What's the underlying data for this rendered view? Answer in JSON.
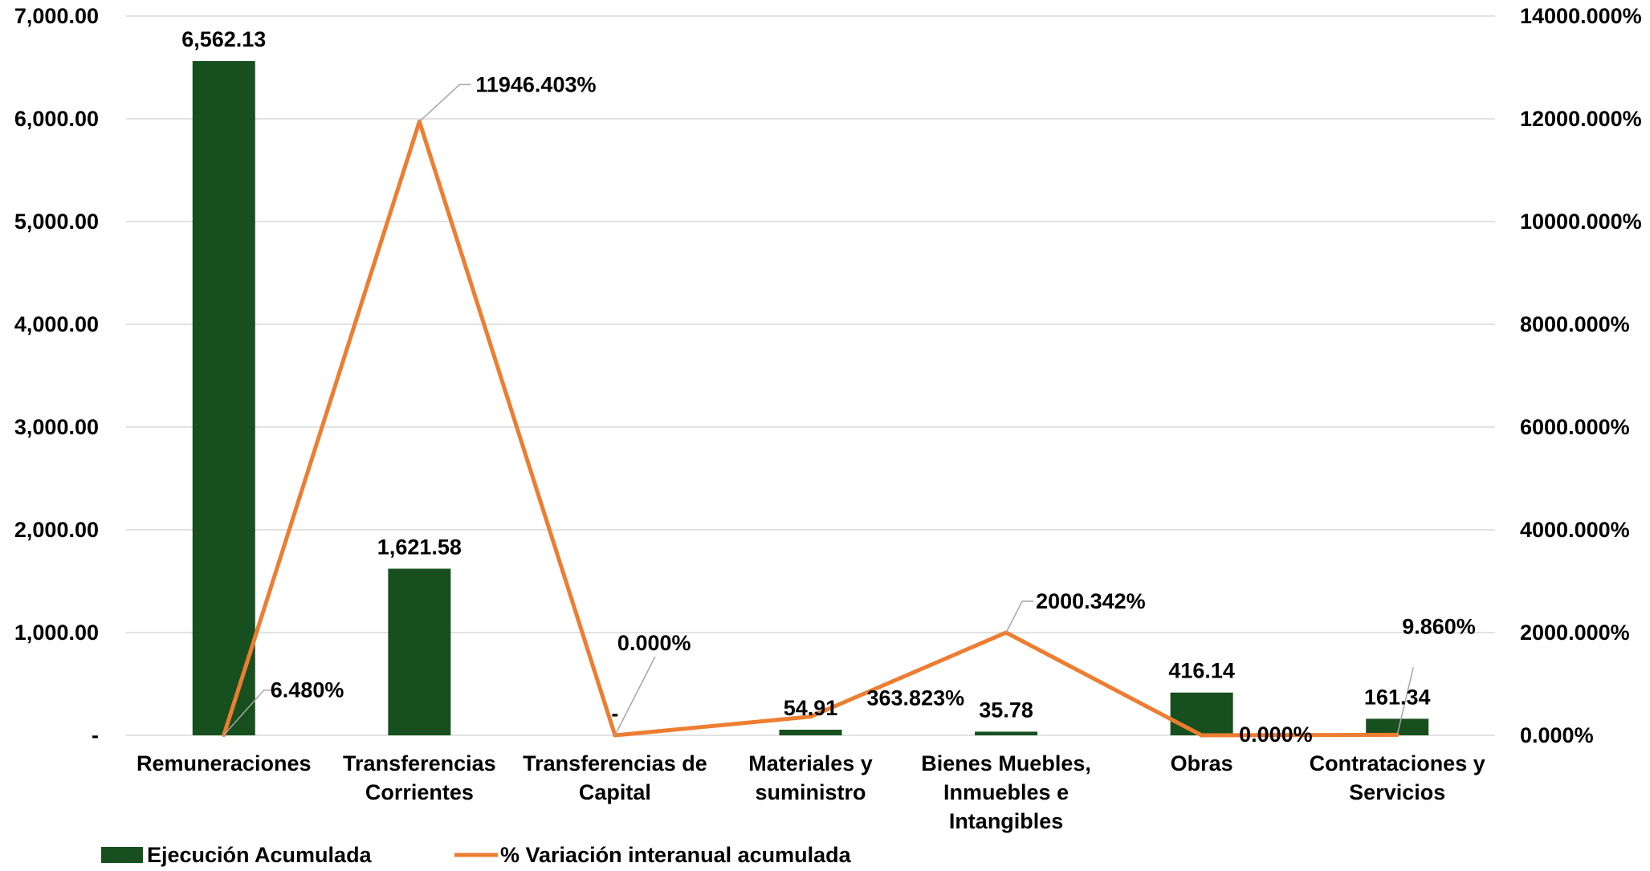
{
  "colors": {
    "bar": "#17501E",
    "line": "#ED7D31",
    "grid": "#D9D9D9",
    "leader": "#A6A6A6"
  },
  "chart_data": {
    "type": "bar",
    "title": "",
    "xlabel": "",
    "ylabel": "",
    "categories": [
      [
        "Remuneraciones"
      ],
      [
        "Transferencias",
        "Corrientes"
      ],
      [
        "Transferencias de",
        "Capital"
      ],
      [
        "Materiales y",
        "suministro"
      ],
      [
        "Bienes Muebles,",
        "Inmuebles e",
        "Intangibles"
      ],
      [
        "Obras"
      ],
      [
        "Contrataciones y",
        "Servicios"
      ]
    ],
    "ylim": [
      0,
      7000
    ],
    "y2lim": [
      0,
      14000
    ],
    "y_ticks": [
      "-",
      "1,000.00",
      "2,000.00",
      "3,000.00",
      "4,000.00",
      "5,000.00",
      "6,000.00",
      "7,000.00"
    ],
    "y2_ticks": [
      "0.000%",
      "2000.000%",
      "4000.000%",
      "6000.000%",
      "8000.000%",
      "10000.000%",
      "12000.000%",
      "14000.000%"
    ],
    "series": [
      {
        "name": "Ejecución Acumulada",
        "type": "bar",
        "axis": "left",
        "values": [
          6562.13,
          1621.58,
          0,
          54.91,
          35.78,
          416.14,
          161.34
        ],
        "labels": [
          "6,562.13",
          "1,621.58",
          "-",
          "54.91",
          "35.78",
          "416.14",
          "161.34"
        ]
      },
      {
        "name": "% Variación interanual acumulada",
        "type": "line",
        "axis": "right",
        "values": [
          6.48,
          11946.403,
          0.0,
          363.823,
          2000.342,
          0.0,
          9.86
        ],
        "labels": [
          "6.480%",
          "11946.403%",
          "0.000%",
          "363.823%",
          "2000.342%",
          "0.000%",
          "9.860%"
        ]
      }
    ],
    "legend": "bottom-left",
    "grid": true
  }
}
